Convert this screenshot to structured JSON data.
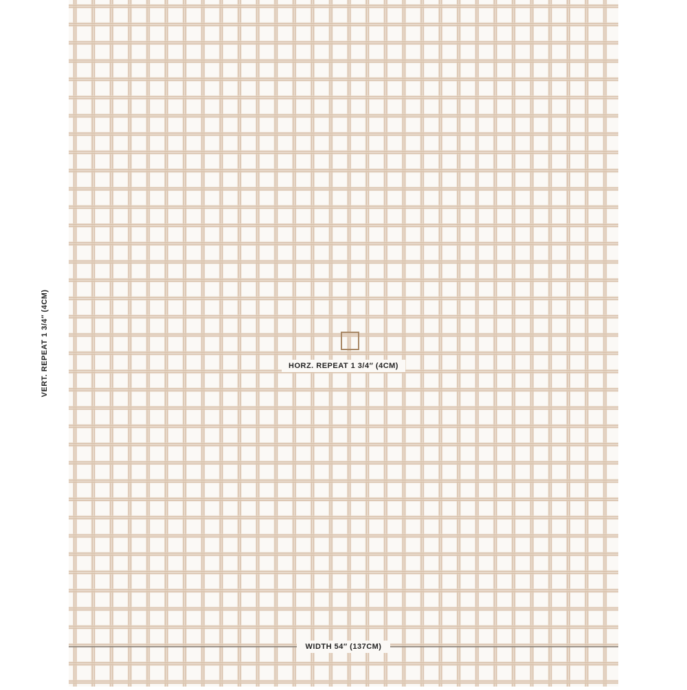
{
  "vertical_label": "VERT. REPEAT  1 3/4″ (4CM)",
  "horizontal_label": "HORZ. REPEAT 1 3/4″ (4CM)",
  "width_label": "WIDTH 54″ (137CM)"
}
